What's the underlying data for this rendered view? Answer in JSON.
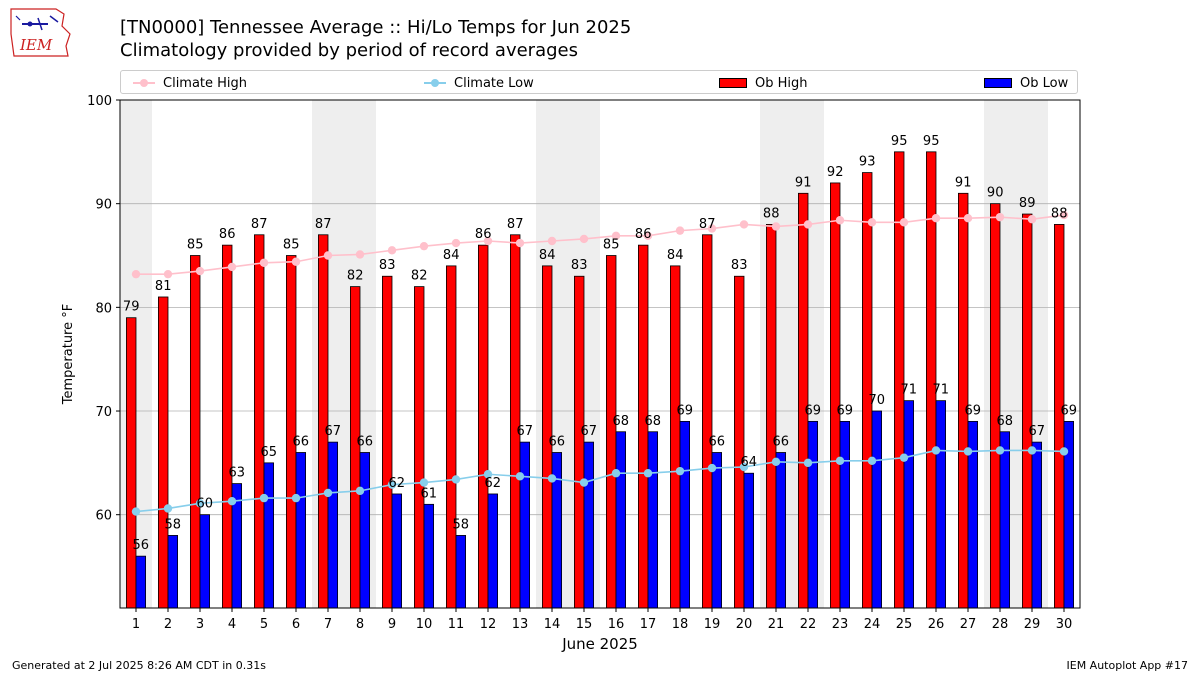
{
  "logo_text": "IEM",
  "title_line1": "[TN0000] Tennessee Average :: Hi/Lo Temps for Jun 2025",
  "title_line2": "Climatology provided by period of record averages",
  "legend": {
    "climate_high": "Climate High",
    "climate_low": "Climate Low",
    "ob_high": "Ob High",
    "ob_low": "Ob Low"
  },
  "footer_left": "Generated at 2 Jul 2025 8:26 AM CDT in 0.31s",
  "footer_right": "IEM Autoplot App #17",
  "colors": {
    "ob_high": "#ff0000",
    "ob_low": "#0000ff",
    "climate_high": "#ffc0cb",
    "climate_low": "#87ceeb",
    "weekend_shade": "#eeeeee",
    "grid": "#b0b0b0"
  },
  "chart_data": {
    "type": "bar",
    "xlabel": "June 2025",
    "ylabel": "Temperature °F",
    "ylim": [
      51,
      100
    ],
    "yticks": [
      60,
      70,
      80,
      90,
      100
    ],
    "grid": "horizontal",
    "legend_position": "top",
    "x": [
      1,
      2,
      3,
      4,
      5,
      6,
      7,
      8,
      9,
      10,
      11,
      12,
      13,
      14,
      15,
      16,
      17,
      18,
      19,
      20,
      21,
      22,
      23,
      24,
      25,
      26,
      27,
      28,
      29,
      30
    ],
    "shaded_days": [
      1,
      7,
      8,
      14,
      15,
      21,
      22,
      28,
      29
    ],
    "series": [
      {
        "name": "Ob High",
        "kind": "bar",
        "values": [
          79,
          81,
          85,
          86,
          87,
          85,
          87,
          82,
          83,
          82,
          84,
          86,
          87,
          84,
          83,
          85,
          86,
          84,
          87,
          83,
          88,
          91,
          92,
          93,
          95,
          95,
          91,
          90,
          89,
          88
        ]
      },
      {
        "name": "Ob Low",
        "kind": "bar",
        "values": [
          56,
          58,
          60,
          63,
          65,
          66,
          67,
          66,
          62,
          61,
          58,
          62,
          67,
          66,
          67,
          68,
          68,
          69,
          66,
          64,
          66,
          69,
          69,
          70,
          71,
          71,
          69,
          68,
          67,
          69
        ]
      },
      {
        "name": "Climate High",
        "kind": "line",
        "values": [
          83.2,
          83.2,
          83.5,
          83.9,
          84.3,
          84.4,
          85.0,
          85.1,
          85.5,
          85.9,
          86.2,
          86.4,
          86.2,
          86.4,
          86.6,
          86.9,
          86.9,
          87.4,
          87.6,
          88.0,
          87.8,
          88.0,
          88.4,
          88.2,
          88.2,
          88.6,
          88.6,
          88.7,
          88.5,
          88.9
        ]
      },
      {
        "name": "Climate Low",
        "kind": "line",
        "values": [
          60.3,
          60.6,
          61.1,
          61.3,
          61.6,
          61.6,
          62.1,
          62.3,
          62.9,
          63.1,
          63.4,
          63.9,
          63.7,
          63.5,
          63.1,
          64.0,
          64.0,
          64.2,
          64.5,
          64.6,
          65.1,
          65.0,
          65.2,
          65.2,
          65.5,
          66.2,
          66.1,
          66.2,
          66.2,
          66.1
        ]
      }
    ]
  }
}
